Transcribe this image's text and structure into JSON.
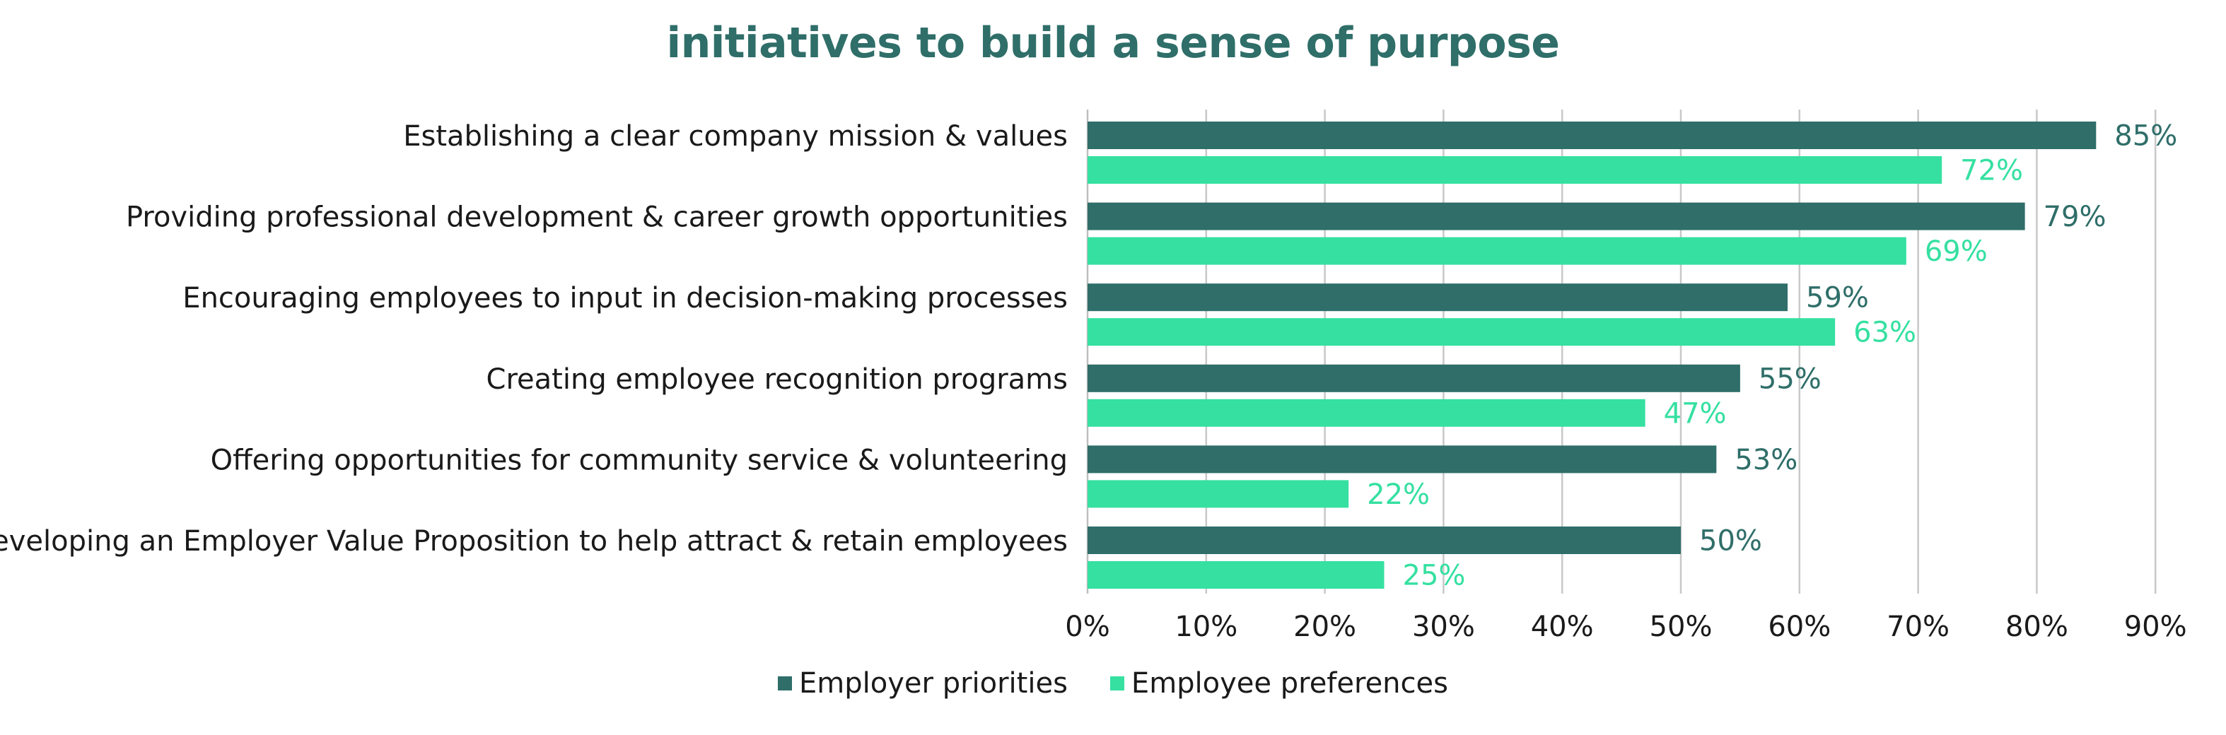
{
  "chart_data": {
    "type": "bar",
    "orientation": "horizontal",
    "title": "initiatives to build a sense of purpose",
    "categories": [
      "Establishing a clear company mission & values",
      "Providing professional development & career growth opportunities",
      "Encouraging employees to input in decision-making processes",
      "Creating employee recognition programs",
      "Offering opportunities for community service & volunteering",
      "Developing an Employer Value Proposition to help attract & retain employees"
    ],
    "series": [
      {
        "name": "Employer priorities",
        "color": "#2f6e69",
        "values": [
          85,
          79,
          59,
          55,
          53,
          50
        ],
        "labels": [
          "85%",
          "79%",
          "59%",
          "55%",
          "53%",
          "50%"
        ]
      },
      {
        "name": "Employee preferences",
        "color": "#35e0a1",
        "values": [
          72,
          69,
          63,
          47,
          22,
          25
        ],
        "labels": [
          "72%",
          "69%",
          "63%",
          "47%",
          "22%",
          "25%"
        ]
      }
    ],
    "xlim": [
      0,
      90
    ],
    "xticks": [
      0,
      10,
      20,
      30,
      40,
      50,
      60,
      70,
      80,
      90
    ],
    "xtick_labels": [
      "0%",
      "10%",
      "20%",
      "30%",
      "40%",
      "50%",
      "60%",
      "70%",
      "80%",
      "90%"
    ],
    "grid": true,
    "legend_position": "bottom"
  }
}
